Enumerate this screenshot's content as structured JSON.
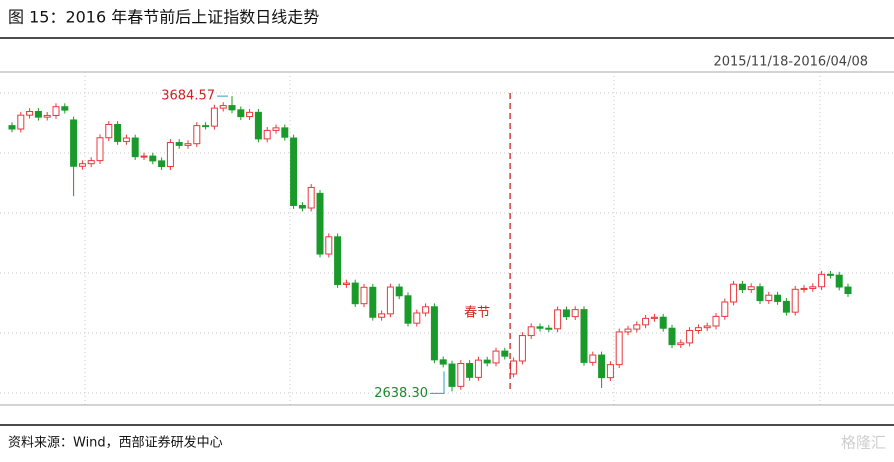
{
  "chart_data": {
    "type": "candlestick",
    "title": "图 15：2016 年春节前后上证指数日线走势",
    "subtitle": "2015/11/18-2016/04/08",
    "source": "资料来源：Wind，西部证券研发中心",
    "watermark": "格隆汇",
    "holiday_label": "春节",
    "annotations": [
      {
        "label": "3684.57"
      },
      {
        "label": "2638.30"
      }
    ],
    "up_color": "#e8383d",
    "down_color": "#1a9a2a",
    "ylim": [
      2590,
      3770
    ],
    "open": [
      3580,
      3568,
      3617,
      3630,
      3610,
      3616,
      3647,
      3600,
      3436,
      3445,
      3456,
      3537,
      3584,
      3524,
      3536,
      3470,
      3472,
      3455,
      3435,
      3520,
      3510,
      3516,
      3580,
      3578,
      3642,
      3651,
      3636,
      3612,
      3627,
      3533,
      3563,
      3572,
      3536,
      3297,
      3288,
      3340,
      3125,
      3186,
      3017,
      3022,
      2949,
      3007,
      2901,
      2913,
      3008,
      2977,
      2880,
      2916,
      2938,
      2750,
      2735,
      2656,
      2737,
      2688,
      2749,
      2739,
      2781,
      2700,
      2746,
      2836,
      2867,
      2862,
      2860,
      2927,
      2903,
      2928,
      2741,
      2767,
      2687,
      2733,
      2849,
      2859,
      2874,
      2897,
      2901,
      2862,
      2804,
      2810,
      2854,
      2864,
      2870,
      2904,
      2955,
      3018,
      2999,
      3009,
      2960,
      2979,
      2957,
      2919,
      3000,
      3003,
      3009,
      3053,
      3050,
      3008
    ],
    "close": [
      3568,
      3617,
      3630,
      3610,
      3616,
      3647,
      3635,
      3436,
      3445,
      3456,
      3537,
      3584,
      3524,
      3536,
      3470,
      3472,
      3455,
      3435,
      3520,
      3510,
      3516,
      3580,
      3578,
      3642,
      3651,
      3636,
      3612,
      3627,
      3533,
      3563,
      3572,
      3539,
      3297,
      3288,
      3361,
      3125,
      3186,
      3017,
      3022,
      2949,
      3007,
      2901,
      2913,
      3008,
      2977,
      2880,
      2916,
      2938,
      2750,
      2735,
      2656,
      2737,
      2688,
      2749,
      2739,
      2781,
      2763,
      2746,
      2836,
      2867,
      2862,
      2860,
      2927,
      2903,
      2928,
      2741,
      2767,
      2687,
      2733,
      2849,
      2859,
      2874,
      2897,
      2901,
      2862,
      2804,
      2810,
      2854,
      2864,
      2870,
      2904,
      2955,
      3018,
      2999,
      3009,
      2960,
      2979,
      2957,
      2919,
      3000,
      3003,
      3009,
      3053,
      3050,
      3008,
      2985
    ],
    "high": [
      3592,
      3629,
      3642,
      3642,
      3628,
      3659,
      3659,
      3612,
      3457,
      3468,
      3549,
      3596,
      3596,
      3548,
      3548,
      3484,
      3484,
      3467,
      3532,
      3532,
      3528,
      3592,
      3592,
      3654,
      3663,
      3684.57,
      3648,
      3639,
      3639,
      3575,
      3584,
      3584,
      3548,
      3309,
      3373,
      3352,
      3198,
      3198,
      3034,
      3034,
      3019,
      3019,
      2925,
      3020,
      3020,
      2989,
      2928,
      2950,
      2950,
      2762,
      2747,
      2749,
      2749,
      2761,
      2761,
      2793,
      2793,
      2758,
      2848,
      2879,
      2879,
      2874,
      2939,
      2939,
      2940,
      2940,
      2779,
      2779,
      2745,
      2861,
      2871,
      2886,
      2909,
      2913,
      2913,
      2874,
      2822,
      2866,
      2876,
      2882,
      2916,
      2967,
      3030,
      3030,
      3021,
      3021,
      2991,
      2991,
      2969,
      3012,
      3015,
      3021,
      3065,
      3065,
      3062,
      3020
    ],
    "low": [
      3556,
      3556,
      3605,
      3598,
      3598,
      3604,
      3623,
      3330,
      3424,
      3433,
      3444,
      3525,
      3512,
      3512,
      3458,
      3458,
      3443,
      3423,
      3423,
      3498,
      3498,
      3504,
      3566,
      3566,
      3630,
      3624,
      3600,
      3600,
      3521,
      3521,
      3551,
      3527,
      3285,
      3276,
      3276,
      3113,
      3113,
      3005,
      3005,
      2937,
      2937,
      2889,
      2889,
      2901,
      2965,
      2868,
      2868,
      2904,
      2738,
      2723,
      2638.3,
      2644,
      2676,
      2676,
      2727,
      2727,
      2751,
      2688,
      2734,
      2824,
      2850,
      2848,
      2848,
      2891,
      2891,
      2729,
      2729,
      2650,
      2675,
      2721,
      2837,
      2847,
      2862,
      2885,
      2850,
      2792,
      2792,
      2798,
      2842,
      2852,
      2858,
      2892,
      2943,
      2987,
      2987,
      2948,
      2948,
      2945,
      2907,
      2907,
      2988,
      2991,
      2997,
      3038,
      2996,
      2973
    ]
  }
}
